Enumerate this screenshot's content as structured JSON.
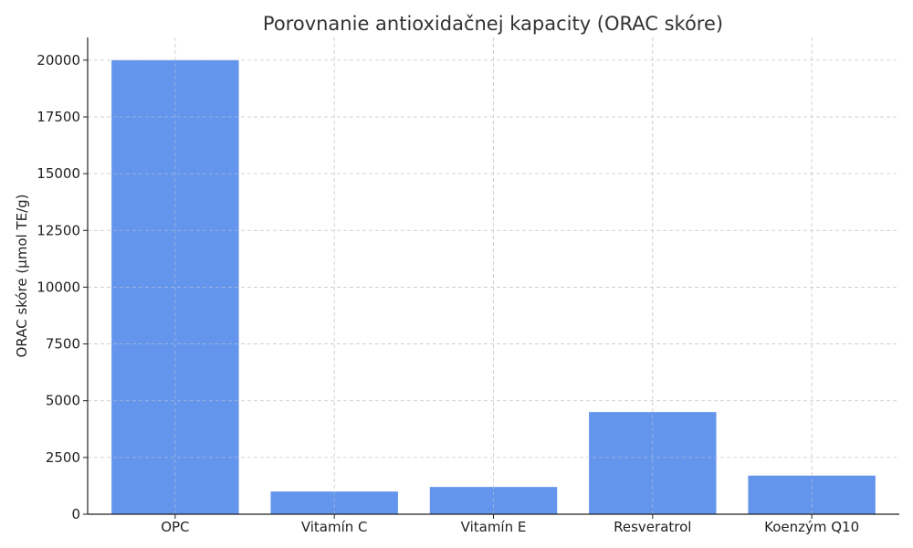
{
  "chart_data": {
    "type": "bar",
    "title": "Porovnanie antioxidačnej kapacity (ORAC skóre)",
    "xlabel": "",
    "ylabel": "ORAC skóre (µmol TE/g)",
    "categories": [
      "OPC",
      "Vitamín C",
      "Vitamín E",
      "Resveratrol",
      "Koenzým Q10"
    ],
    "values": [
      20000,
      1000,
      1200,
      4500,
      1700
    ],
    "ylim": [
      0,
      21000
    ],
    "yticks": [
      0,
      2500,
      5000,
      7500,
      10000,
      12500,
      15000,
      17500,
      20000
    ],
    "grid": true,
    "bar_color": "#6495ED"
  }
}
